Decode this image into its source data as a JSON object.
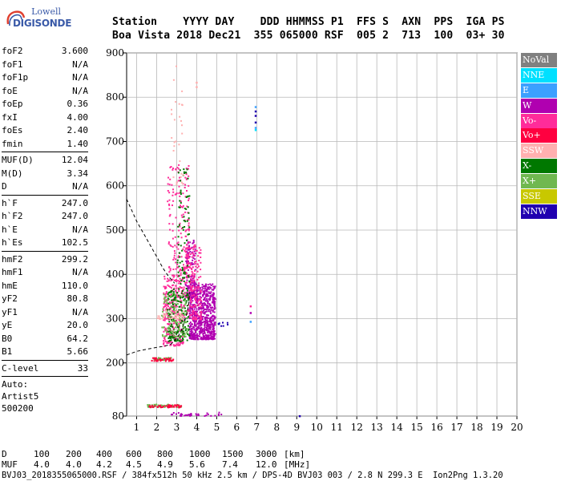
{
  "logo": {
    "top": "Lowell",
    "main": "DIGISONDE"
  },
  "header": {
    "row1": "Station    YYYY DAY    DDD HHMMSS P1  FFS S  AXN  PPS  IGA PS",
    "row2": "Boa Vista 2018 Dec21  355 065000 RSF  005 2  713  100  03+ 30"
  },
  "params": [
    [
      [
        "foF2",
        "3.600"
      ],
      [
        "foF1",
        "N/A"
      ],
      [
        "foF1p",
        "N/A"
      ],
      [
        "foE",
        "N/A"
      ],
      [
        "foEp",
        "0.36"
      ],
      [
        "fxI",
        "4.00"
      ],
      [
        "foEs",
        "2.40"
      ],
      [
        "fmin",
        "1.40"
      ]
    ],
    [
      [
        "MUF(D)",
        "12.04"
      ],
      [
        "M(D)",
        "3.34"
      ],
      [
        "D",
        "N/A"
      ]
    ],
    [
      [
        "h`F",
        "247.0"
      ],
      [
        "h`F2",
        "247.0"
      ],
      [
        "h`E",
        "N/A"
      ],
      [
        "h`Es",
        "102.5"
      ]
    ],
    [
      [
        "hmF2",
        "299.2"
      ],
      [
        "hmF1",
        "N/A"
      ],
      [
        "hmE",
        "110.0"
      ],
      [
        "yF2",
        "80.8"
      ],
      [
        "yF1",
        "N/A"
      ],
      [
        "yE",
        "20.0"
      ],
      [
        "B0",
        "64.2"
      ],
      [
        "B1",
        "5.66"
      ]
    ],
    [
      [
        "C-level",
        "33"
      ]
    ]
  ],
  "auto": [
    "Auto:",
    "Artist5",
    "500200"
  ],
  "legend": [
    {
      "label": "NoVal",
      "color": "#808080"
    },
    {
      "label": "NNE",
      "color": "#00e0ff"
    },
    {
      "label": "E",
      "color": "#3ca0ff"
    },
    {
      "label": "W",
      "color": "#b000b0"
    },
    {
      "label": "Vo-",
      "color": "#ff2c9a"
    },
    {
      "label": "Vo+",
      "color": "#ff0040"
    },
    {
      "label": "SSW",
      "color": "#ffb0b0"
    },
    {
      "label": "X-",
      "color": "#007800"
    },
    {
      "label": "X+",
      "color": "#70b850"
    },
    {
      "label": "SSE",
      "color": "#c8c800"
    },
    {
      "label": "NNW",
      "color": "#2000b0"
    }
  ],
  "footer": {
    "d_label": "D",
    "muf_label": "MUF",
    "d_values": [
      "100",
      "200",
      "400",
      "600",
      "800",
      "1000",
      "1500",
      "3000",
      "[km]"
    ],
    "muf_values": [
      "4.0",
      "4.0",
      "4.2",
      "4.5",
      "4.9",
      "5.6",
      "7.4",
      "12.0",
      "[MHz]"
    ],
    "file_line": "BVJ03_2018355065000.RSF / 384fx512h 50 kHz 2.5 km / DPS-4D BVJ03 003 / 2.8 N 299.3 E  Ion2Png 1.3.20"
  },
  "chart_data": {
    "type": "scatter",
    "xlim": [
      0.5,
      20
    ],
    "ylim": [
      80,
      900
    ],
    "xticks": [
      "1",
      "2",
      "3",
      "4",
      "5",
      "6",
      "7",
      "8",
      "9",
      "10",
      "11",
      "12",
      "13",
      "14",
      "15",
      "16",
      "17",
      "18",
      "19",
      "20"
    ],
    "yticks": [
      "80",
      "200",
      "300",
      "400",
      "500",
      "600",
      "700",
      "800",
      "900"
    ],
    "grid": true,
    "legend_position": "right",
    "profile_curve": [
      [
        0.5,
        570
      ],
      [
        1.0,
        520
      ],
      [
        1.5,
        480
      ],
      [
        2.0,
        440
      ],
      [
        2.3,
        415
      ],
      [
        2.6,
        395
      ],
      [
        2.9,
        380
      ]
    ],
    "lower_curve": [
      [
        0.5,
        218
      ],
      [
        1.0,
        226
      ],
      [
        1.5,
        231
      ],
      [
        2.0,
        235
      ],
      [
        2.4,
        238
      ],
      [
        2.7,
        242
      ],
      [
        2.9,
        250
      ],
      [
        3.1,
        262
      ],
      [
        3.3,
        280
      ],
      [
        3.5,
        310
      ],
      [
        3.6,
        330
      ],
      [
        3.65,
        360
      ]
    ],
    "clusters": [
      {
        "series": "W",
        "color": "#b000b0",
        "x": [
          3.6,
          4.9
        ],
        "y": [
          255,
          380
        ],
        "n": 700
      },
      {
        "series": "W",
        "color": "#b000b0",
        "x": [
          3.4,
          3.9
        ],
        "y": [
          350,
          480
        ],
        "n": 140
      },
      {
        "series": "Vo-",
        "color": "#ff2c9a",
        "x": [
          2.3,
          3.3
        ],
        "y": [
          240,
          400
        ],
        "n": 300
      },
      {
        "series": "Vo-",
        "color": "#ff2c9a",
        "x": [
          2.5,
          3.6
        ],
        "y": [
          400,
          650
        ],
        "n": 160
      },
      {
        "series": "Vo-",
        "color": "#ff2c9a",
        "x": [
          3.3,
          4.2
        ],
        "y": [
          300,
          470
        ],
        "n": 200
      },
      {
        "series": "X-",
        "color": "#007800",
        "x": [
          2.5,
          3.6
        ],
        "y": [
          250,
          370
        ],
        "n": 180
      },
      {
        "series": "X-",
        "color": "#007800",
        "x": [
          3.0,
          3.6
        ],
        "y": [
          380,
          640
        ],
        "n": 70
      },
      {
        "series": "X+",
        "color": "#70b850",
        "x": [
          2.2,
          3.5
        ],
        "y": [
          260,
          360
        ],
        "n": 110
      },
      {
        "series": "X+",
        "color": "#70b850",
        "x": [
          1.8,
          2.7
        ],
        "y": [
          208,
          214
        ],
        "n": 40
      },
      {
        "series": "X+",
        "color": "#70b850",
        "x": [
          1.5,
          3.2
        ],
        "y": [
          102,
          108
        ],
        "n": 60
      },
      {
        "series": "Vo+",
        "color": "#ff0040",
        "x": [
          1.6,
          3.2
        ],
        "y": [
          101,
          107
        ],
        "n": 50
      },
      {
        "series": "Vo+",
        "color": "#ff0040",
        "x": [
          1.7,
          2.8
        ],
        "y": [
          206,
          213
        ],
        "n": 40
      },
      {
        "series": "SSW",
        "color": "#ffb0b0",
        "x": [
          2.0,
          3.3
        ],
        "y": [
          300,
          320
        ],
        "n": 40
      },
      {
        "series": "SSW",
        "color": "#ffb0b0",
        "x": [
          2.7,
          3.3
        ],
        "y": [
          600,
          880
        ],
        "n": 30
      },
      {
        "series": "W",
        "color": "#b000b0",
        "x": [
          2.7,
          5.2
        ],
        "y": [
          82,
          90
        ],
        "n": 35
      },
      {
        "series": "NNW",
        "color": "#2000b0",
        "x": [
          5.0,
          5.6
        ],
        "y": [
          285,
          295
        ],
        "n": 8
      }
    ],
    "points": [
      {
        "series": "NNW",
        "color": "#2000b0",
        "x": 6.9,
        "y": 770
      },
      {
        "series": "NNW",
        "color": "#2000b0",
        "x": 6.9,
        "y": 760
      },
      {
        "series": "NNW",
        "color": "#2000b0",
        "x": 6.9,
        "y": 745
      },
      {
        "series": "E",
        "color": "#3ca0ff",
        "x": 6.9,
        "y": 733
      },
      {
        "series": "E",
        "color": "#3ca0ff",
        "x": 6.9,
        "y": 780
      },
      {
        "series": "NNE",
        "color": "#00e0ff",
        "x": 6.9,
        "y": 728
      },
      {
        "series": "Vo-",
        "color": "#ff2c9a",
        "x": 6.65,
        "y": 330
      },
      {
        "series": "W",
        "color": "#b000b0",
        "x": 6.65,
        "y": 315
      },
      {
        "series": "E",
        "color": "#3ca0ff",
        "x": 6.65,
        "y": 295
      },
      {
        "series": "NNW",
        "color": "#2000b0",
        "x": 9.1,
        "y": 82
      },
      {
        "series": "SSW",
        "color": "#ffb0b0",
        "x": 3.95,
        "y": 835
      },
      {
        "series": "SSW",
        "color": "#ffb0b0",
        "x": 3.95,
        "y": 825
      }
    ]
  }
}
